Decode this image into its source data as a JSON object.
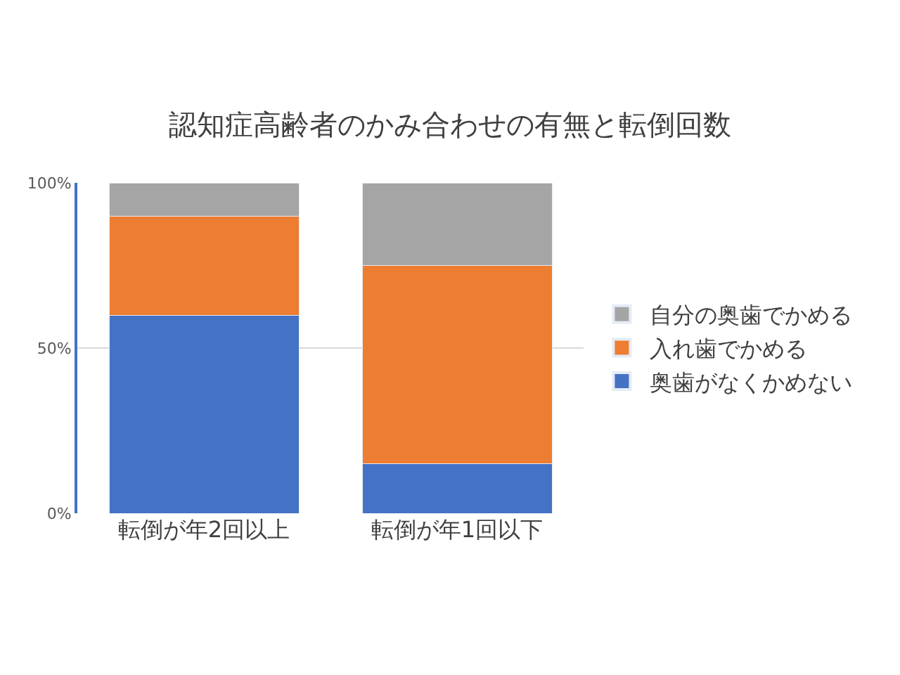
{
  "chart_data": {
    "type": "bar",
    "stacked": true,
    "title": "認知症高齢者のかみ合わせの有無と転倒回数",
    "categories": [
      "転倒が年2回以上",
      "転倒が年1回以下"
    ],
    "series": [
      {
        "name": "奥歯がなくかめない",
        "color": "#4472c4",
        "values": [
          60,
          15
        ]
      },
      {
        "name": "入れ歯でかめる",
        "color": "#ed7d31",
        "values": [
          30,
          60
        ]
      },
      {
        "name": "自分の奥歯でかめる",
        "color": "#a5a5a5",
        "values": [
          10,
          25
        ]
      }
    ],
    "ylim": [
      0,
      100
    ],
    "yticks": [
      {
        "value": 0,
        "label": "0%"
      },
      {
        "value": 50,
        "label": "50%"
      },
      {
        "value": 100,
        "label": "100%"
      }
    ],
    "grid": "y",
    "legend": "right"
  }
}
